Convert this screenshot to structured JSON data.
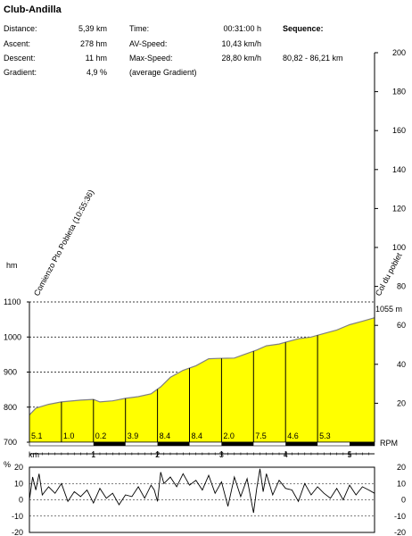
{
  "header": {
    "title": "Club-Andilla",
    "distance_label": "Distance:",
    "distance_value": "5,39 km",
    "ascent_label": "Ascent:",
    "ascent_value": "278 hm",
    "descent_label": "Descent:",
    "descent_value": "11 hm",
    "gradient_label": "Gradient:",
    "gradient_value": "4,9 %",
    "time_label": "Time:",
    "time_value": "00:31:00 h",
    "avspeed_label": "AV-Speed:",
    "avspeed_value": "10,43 km/h",
    "maxspeed_label": "Max-Speed:",
    "maxspeed_value": "28,80 km/h",
    "avg_gradient_note": "(average Gradient)",
    "sequence_label": "Sequence:",
    "sequence_value": "80,82 - 86,21 km"
  },
  "chart_data": [
    {
      "type": "area",
      "name": "elevation-profile",
      "xlabel": "km",
      "ylabel": "hm",
      "y2label": "RPM",
      "xlim": [
        0,
        5.39
      ],
      "ylim": [
        700,
        1100
      ],
      "y2lim": [
        0,
        200
      ],
      "x_ticks": [
        "1",
        "2",
        "3",
        "4",
        "5"
      ],
      "y_ticks": [
        "700",
        "800",
        "900",
        "1000",
        "1100"
      ],
      "y2_ticks": [
        "20",
        "40",
        "60",
        "80",
        "100",
        "120",
        "140",
        "160",
        "180",
        "200"
      ],
      "fill_color": "#ffff00",
      "profile_x": [
        0,
        0.1,
        0.3,
        0.5,
        0.8,
        1.0,
        1.1,
        1.3,
        1.5,
        1.7,
        1.9,
        2.05,
        2.2,
        2.4,
        2.6,
        2.8,
        2.95,
        3.2,
        3.35,
        3.55,
        3.7,
        3.9,
        4.0,
        4.2,
        4.4,
        4.6,
        4.8,
        5.0,
        5.2,
        5.39
      ],
      "profile_y": [
        778,
        797,
        808,
        815,
        820,
        822,
        815,
        818,
        825,
        830,
        838,
        858,
        885,
        905,
        918,
        938,
        939,
        940,
        950,
        963,
        975,
        980,
        985,
        995,
        1000,
        1010,
        1020,
        1035,
        1045,
        1055
      ],
      "segment_gradients": [
        "5.1",
        "1.0",
        "0.2",
        "3.9",
        "8.4",
        "8.4",
        "2.0",
        "7.5",
        "4.6",
        "5.3"
      ],
      "waypoints": [
        {
          "label": "Comienzo Pto Pobleta (10:55:36)",
          "x": 0
        },
        {
          "label": "Col du poblet",
          "x": 5.39
        }
      ],
      "end_label": "1055 m",
      "scale_bar_dark_ranges": [
        [
          1.0,
          1.5
        ],
        [
          2.0,
          2.5
        ],
        [
          3.0,
          3.5
        ],
        [
          4.0,
          4.5
        ],
        [
          5.0,
          5.39
        ]
      ]
    },
    {
      "type": "line",
      "name": "gradient-line",
      "ylabel": "%",
      "xlim": [
        0,
        5.39
      ],
      "ylim": [
        -20,
        20
      ],
      "y_ticks": [
        "20",
        "10",
        "0",
        "-10",
        "-20"
      ],
      "y2_ticks": [
        "20",
        "10",
        "0",
        "-10",
        "-20"
      ],
      "x": [
        0,
        0.05,
        0.1,
        0.15,
        0.2,
        0.3,
        0.4,
        0.5,
        0.6,
        0.7,
        0.8,
        0.9,
        1.0,
        1.1,
        1.2,
        1.3,
        1.4,
        1.5,
        1.6,
        1.7,
        1.8,
        1.9,
        1.95,
        2.0,
        2.05,
        2.1,
        2.2,
        2.3,
        2.4,
        2.5,
        2.6,
        2.7,
        2.8,
        2.9,
        3.0,
        3.1,
        3.2,
        3.3,
        3.4,
        3.5,
        3.55,
        3.6,
        3.65,
        3.7,
        3.8,
        3.9,
        4.0,
        4.1,
        4.2,
        4.3,
        4.4,
        4.5,
        4.6,
        4.7,
        4.8,
        4.9,
        5.0,
        5.1,
        5.2,
        5.3,
        5.39
      ],
      "values": [
        0,
        14,
        6,
        16,
        3,
        8,
        4,
        10,
        -1,
        5,
        2,
        6,
        -2,
        7,
        1,
        4,
        -3,
        3,
        2,
        8,
        1,
        9,
        6,
        -1,
        17,
        10,
        14,
        8,
        16,
        9,
        12,
        6,
        15,
        4,
        11,
        -4,
        14,
        2,
        13,
        -8,
        7,
        19,
        5,
        16,
        3,
        12,
        7,
        6,
        -1,
        10,
        3,
        8,
        4,
        1,
        7,
        0,
        9,
        3,
        8,
        6,
        4
      ]
    }
  ]
}
